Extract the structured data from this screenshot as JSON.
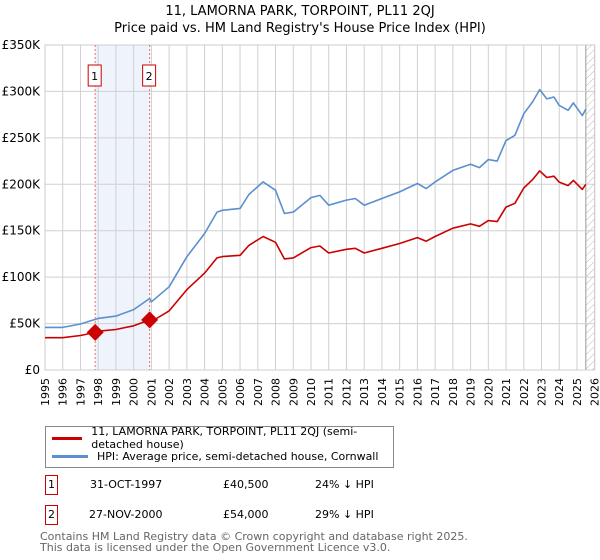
{
  "title": "11, LAMORNA PARK, TORPOINT, PL11 2QJ",
  "subtitle": "Price paid vs. HM Land Registry's House Price Index (HPI)",
  "chart_data": {
    "type": "line",
    "title": "11, LAMORNA PARK, TORPOINT, PL11 2QJ — Price paid vs. HM Land Registry's House Price Index (HPI)",
    "xlim": [
      1995,
      2026
    ],
    "ylim": [
      0,
      350000
    ],
    "x_ticks": [
      "1995",
      "1996",
      "1997",
      "1998",
      "1999",
      "2000",
      "2001",
      "2002",
      "2003",
      "2004",
      "2005",
      "2006",
      "2007",
      "2008",
      "2009",
      "2010",
      "2011",
      "2012",
      "2013",
      "2014",
      "2015",
      "2016",
      "2017",
      "2018",
      "2019",
      "2020",
      "2021",
      "2022",
      "2023",
      "2024",
      "2025",
      "2026"
    ],
    "y_ticks": [
      {
        "v": 0,
        "label": "£0"
      },
      {
        "v": 50000,
        "label": "£50K"
      },
      {
        "v": 100000,
        "label": "£100K"
      },
      {
        "v": 150000,
        "label": "£150K"
      },
      {
        "v": 200000,
        "label": "£200K"
      },
      {
        "v": 250000,
        "label": "£250K"
      },
      {
        "v": 300000,
        "label": "£300K"
      },
      {
        "v": 350000,
        "label": "£350K"
      }
    ],
    "grid": true,
    "series": [
      {
        "name": "11, LAMORNA PARK, TORPOINT, PL11 2QJ (semi-detached house)",
        "color": "#cc0000",
        "x": [
          1995,
          1996,
          1997,
          1997.83,
          1998,
          1999,
          2000,
          2000.9,
          2001,
          2002,
          2003,
          2004,
          2004.7,
          2005,
          2006,
          2006.5,
          2007.3,
          2008,
          2008.5,
          2009,
          2010,
          2010.5,
          2011,
          2012,
          2012.5,
          2013,
          2014,
          2015,
          2016,
          2016.5,
          2017,
          2018,
          2019,
          2019.5,
          2020,
          2020.5,
          2021,
          2021.5,
          2022,
          2022.5,
          2022.9,
          2023.3,
          2023.7,
          2024,
          2024.5,
          2024.8,
          2025.3,
          2025.5
        ],
        "y": [
          34800,
          34800,
          37200,
          40500,
          41800,
          43600,
          47600,
          54000,
          52200,
          63600,
          86600,
          104400,
          120700,
          122100,
          123500,
          134200,
          143800,
          137500,
          119600,
          120700,
          131800,
          133500,
          126000,
          130000,
          131100,
          126000,
          131100,
          136200,
          142600,
          138700,
          143800,
          152700,
          157300,
          154800,
          160900,
          159800,
          175400,
          179500,
          196000,
          205000,
          214400,
          207300,
          208700,
          202400,
          198600,
          204200,
          194500,
          200000
        ]
      },
      {
        "name": "HPI: Average price, semi-detached house, Cornwall",
        "color": "#5b8fd0",
        "x": [
          1995,
          1996,
          1997,
          1997.83,
          1998,
          1999,
          2000,
          2000.9,
          2001,
          2002,
          2003,
          2004,
          2004.7,
          2005,
          2006,
          2006.5,
          2007.3,
          2008,
          2008.5,
          2009,
          2010,
          2010.5,
          2011,
          2012,
          2012.5,
          2013,
          2014,
          2015,
          2016,
          2016.5,
          2017,
          2018,
          2019,
          2019.5,
          2020,
          2020.5,
          2021,
          2021.5,
          2022,
          2022.5,
          2022.9,
          2023.3,
          2023.7,
          2024,
          2024.5,
          2024.8,
          2025.3,
          2025.5
        ],
        "y": [
          45900,
          45900,
          49500,
          54500,
          55600,
          58000,
          65000,
          77000,
          73500,
          89600,
          122000,
          147000,
          170000,
          172000,
          174000,
          189000,
          202600,
          193600,
          168500,
          170000,
          185700,
          188000,
          177500,
          183000,
          184700,
          177500,
          184700,
          191800,
          200800,
          195400,
          202600,
          215000,
          221600,
          218000,
          226600,
          225000,
          247000,
          252800,
          276000,
          288700,
          302000,
          292000,
          294000,
          285000,
          279700,
          287600,
          274000,
          281000
        ]
      }
    ],
    "sales": [
      {
        "label": "1",
        "x": 1997.83,
        "y": 40500
      },
      {
        "label": "2",
        "x": 2000.9,
        "y": 54000
      }
    ],
    "shaded_period": [
      1997.83,
      2000.9
    ],
    "hatched_from": 2025.5
  },
  "legend": [
    {
      "label": "11, LAMORNA PARK, TORPOINT, PL11 2QJ (semi-detached house)",
      "color": "#cc0000"
    },
    {
      "label": "HPI: Average price, semi-detached house, Cornwall",
      "color": "#5b8fd0"
    }
  ],
  "sales_table": [
    {
      "num": "1",
      "date": "31-OCT-1997",
      "price": "£40,500",
      "delta": "24% ↓ HPI"
    },
    {
      "num": "2",
      "date": "27-NOV-2000",
      "price": "£54,000",
      "delta": "29% ↓ HPI"
    }
  ],
  "footer": {
    "line1": "Contains HM Land Registry data © Crown copyright and database right 2025.",
    "line2": "This data is licensed under the Open Government Licence v3.0."
  }
}
